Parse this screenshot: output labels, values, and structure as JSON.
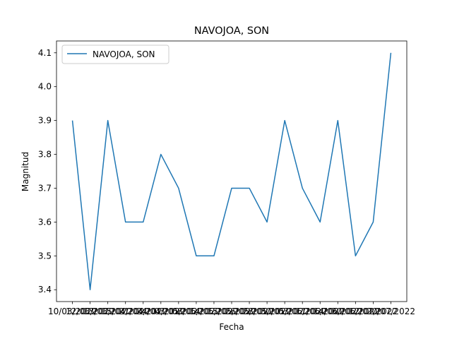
{
  "chart_data": {
    "type": "line",
    "title": "NAVOJOA, SON",
    "xlabel": "Fecha",
    "ylabel": "Magnitud",
    "legend": {
      "placement": "upper-left",
      "entries": [
        "NAVOJOA, SON"
      ]
    },
    "grid": false,
    "ylim": [
      3.365,
      4.135
    ],
    "yticks": [
      "3.4",
      "3.5",
      "3.6",
      "3.7",
      "3.8",
      "3.9",
      "4.0",
      "4.1"
    ],
    "x": [
      "10/03/2022",
      "12/03/2022",
      "13/03/2022",
      "15/04/2022",
      "21/04/2022",
      "24/04/2022",
      "03/05/2022",
      "08/05/2022",
      "14/05/2022",
      "15/05/2022",
      "26/05/2022",
      "28/05/2022",
      "30/05/2022",
      "03/06/2022",
      "11/06/2022",
      "14/06/2022",
      "30/06/2022",
      "12/07/2022",
      "20/07/2022"
    ],
    "series": [
      {
        "name": "NAVOJOA, SON",
        "color": "#1f77b4",
        "values": [
          3.9,
          3.4,
          3.9,
          3.6,
          3.6,
          3.8,
          3.7,
          3.5,
          3.5,
          3.7,
          3.7,
          3.6,
          3.9,
          3.7,
          3.6,
          3.9,
          3.5,
          3.6,
          4.1
        ]
      }
    ]
  }
}
